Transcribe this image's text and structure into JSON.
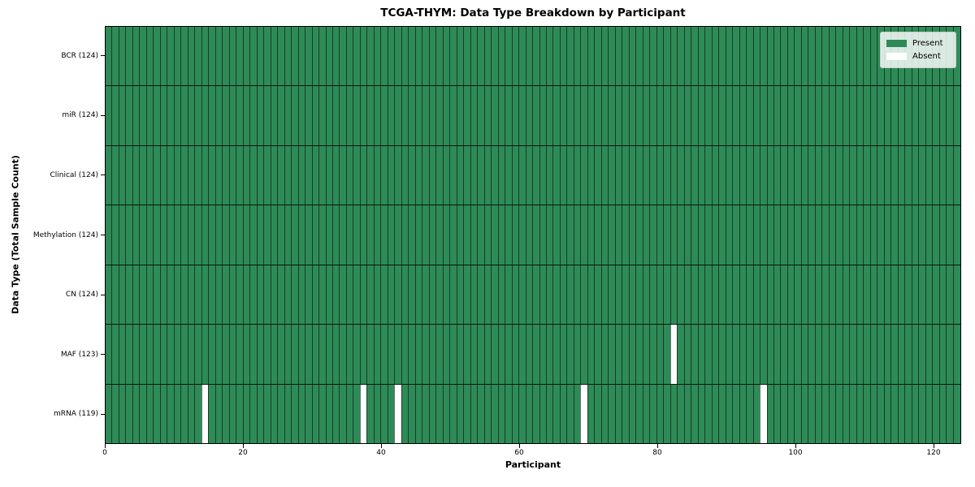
{
  "chart_data": {
    "type": "heatmap",
    "title": "TCGA-THYM: Data Type Breakdown by Participant",
    "xlabel": "Participant",
    "ylabel": "Data Type (Total Sample Count)",
    "x_range": [
      0,
      124
    ],
    "x_ticks": [
      0,
      20,
      40,
      60,
      80,
      100,
      120
    ],
    "n_participants": 124,
    "value_encoding": {
      "present": 1,
      "absent": 0
    },
    "rows": [
      {
        "label": "BCR (124)",
        "data_type": "BCR",
        "present_count": 124,
        "absent_participants": []
      },
      {
        "label": "miR (124)",
        "data_type": "miR",
        "present_count": 124,
        "absent_participants": []
      },
      {
        "label": "Clinical (124)",
        "data_type": "Clinical",
        "present_count": 124,
        "absent_participants": []
      },
      {
        "label": "Methylation (124)",
        "data_type": "Methylation",
        "present_count": 124,
        "absent_participants": []
      },
      {
        "label": "CN (124)",
        "data_type": "CN",
        "present_count": 124,
        "absent_participants": []
      },
      {
        "label": "MAF (123)",
        "data_type": "MAF",
        "present_count": 123,
        "absent_participants": [
          82
        ]
      },
      {
        "label": "mRNA (119)",
        "data_type": "mRNA",
        "present_count": 119,
        "absent_participants": [
          14,
          37,
          42,
          69,
          95
        ]
      }
    ],
    "legend": {
      "position": "upper right",
      "entries": [
        {
          "label": "Present",
          "color": "#2e8b57"
        },
        {
          "label": "Absent",
          "color": "#ffffff"
        }
      ]
    },
    "colors": {
      "present": "#2e8b57",
      "absent": "#ffffff",
      "cell_edge": "rgba(0,0,0,0.55)",
      "row_divider": "rgba(0,0,0,0.85)",
      "spine": "#000000"
    },
    "layout": {
      "grid": "off",
      "legend_frame": "on"
    }
  }
}
